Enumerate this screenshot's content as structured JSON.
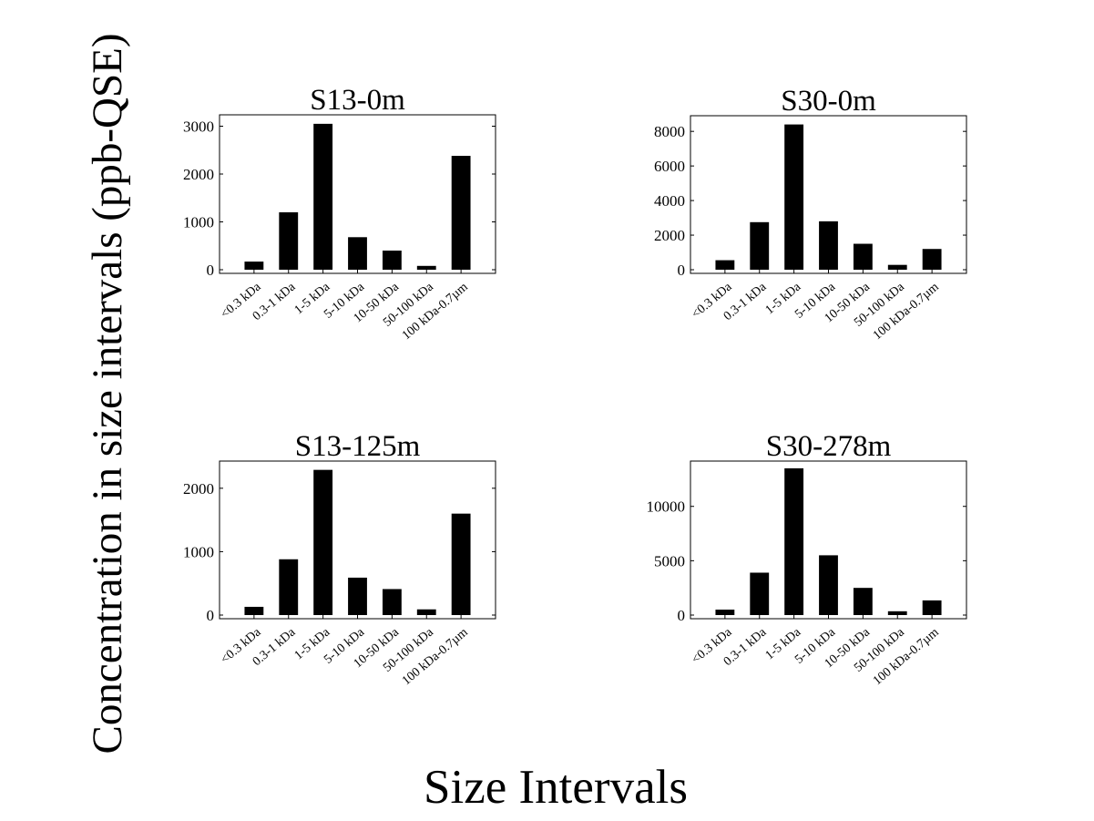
{
  "figure": {
    "ylabel": "Concentration in size intervals (ppb-QSE)",
    "xlabel": "Size Intervals"
  },
  "chart_data": [
    {
      "type": "bar",
      "title": "S13-0m",
      "categories": [
        "<0.3 kDa",
        "0.3-1 kDa",
        "1-5 kDa",
        "5-10 kDa",
        "10-50 kDa",
        "50-100 kDa",
        "100 kDa-0.7µm"
      ],
      "values": [
        170,
        1200,
        3050,
        680,
        400,
        80,
        2380
      ],
      "ylim": [
        0,
        3200
      ],
      "yticks": [
        0,
        1000,
        2000,
        3000
      ],
      "bar_color": "#000000"
    },
    {
      "type": "bar",
      "title": "S30-0m",
      "categories": [
        "<0.3 kDa",
        "0.3-1 kDa",
        "1-5 kDa",
        "5-10 kDa",
        "10-50 kDa",
        "50-100 kDa",
        "100 kDa-0.7µm"
      ],
      "values": [
        550,
        2750,
        8400,
        2800,
        1500,
        280,
        1200
      ],
      "ylim": [
        0,
        8800
      ],
      "yticks": [
        0,
        2000,
        4000,
        6000,
        8000
      ],
      "bar_color": "#000000"
    },
    {
      "type": "bar",
      "title": "S13-125m",
      "categories": [
        "<0.3 kDa",
        "0.3-1 kDa",
        "1-5 kDa",
        "5-10 kDa",
        "10-50 kDa",
        "50-100 kDa",
        "100 kDa-0.7µm"
      ],
      "values": [
        130,
        880,
        2290,
        590,
        410,
        90,
        1600
      ],
      "ylim": [
        0,
        2400
      ],
      "yticks": [
        0,
        1000,
        2000
      ],
      "bar_color": "#000000"
    },
    {
      "type": "bar",
      "title": "S30-278m",
      "categories": [
        "<0.3 kDa",
        "0.3-1 kDa",
        "1-5 kDa",
        "5-10 kDa",
        "10-50 kDa",
        "50-100 kDa",
        "100 kDa-0.7µm"
      ],
      "values": [
        500,
        3900,
        13500,
        5500,
        2500,
        350,
        1350
      ],
      "ylim": [
        0,
        14000
      ],
      "yticks": [
        0,
        5000,
        10000
      ],
      "bar_color": "#000000"
    }
  ]
}
